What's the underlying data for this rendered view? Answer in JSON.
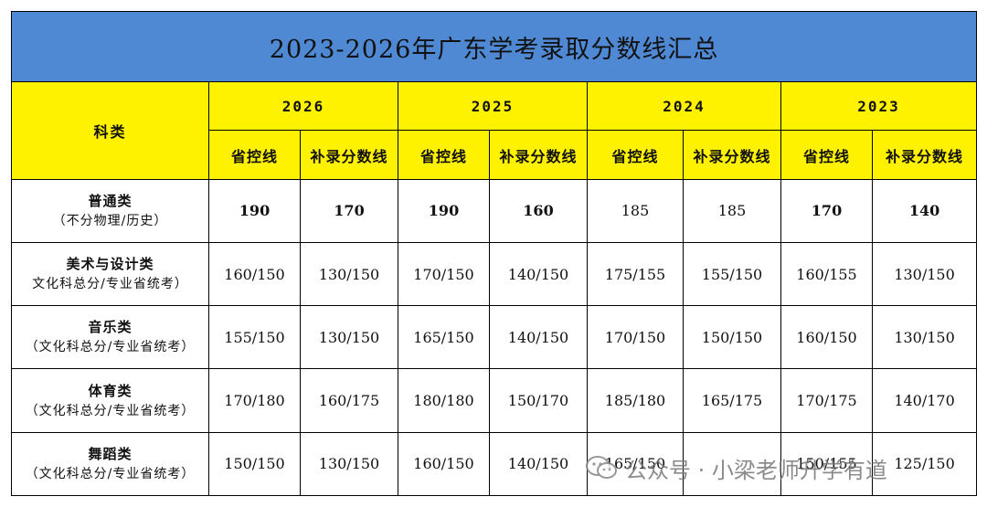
{
  "title": "2023-2026年广东学考录取分数线汇总",
  "corner_label": "科类",
  "years": [
    "2026",
    "2025",
    "2024",
    "2023"
  ],
  "sub_headers": [
    "省控线",
    "补录分数线"
  ],
  "rows": [
    {
      "name": "普通类",
      "note": "（不分物理/历史）",
      "values": [
        "190",
        "170",
        "190",
        "160",
        "185",
        "185",
        "170",
        "140"
      ]
    },
    {
      "name": "美术与设计类",
      "note": "文化科总分/专业省统考）",
      "values": [
        "160/150",
        "130/150",
        "170/150",
        "140/150",
        "175/155",
        "155/150",
        "160/155",
        "130/150"
      ]
    },
    {
      "name": "音乐类",
      "note": "（文化科总分/专业省统考）",
      "values": [
        "155/150",
        "130/150",
        "165/150",
        "140/150",
        "170/150",
        "150/150",
        "160/150",
        "130/150"
      ]
    },
    {
      "name": "体育类",
      "note": "（文化科总分/专业省统考）",
      "values": [
        "170/180",
        "160/175",
        "180/180",
        "150/170",
        "185/180",
        "165/175",
        "170/175",
        "140/170"
      ]
    },
    {
      "name": "舞蹈类",
      "note": "（文化科总分/专业省统考）",
      "values": [
        "150/150",
        "130/150",
        "160/150",
        "140/150",
        "165/150",
        "",
        "150/155",
        "125/150"
      ]
    }
  ],
  "watermark": "公众号 · 小梁老师升学有道",
  "colors": {
    "title_bg": "#4f89d4",
    "header_bg": "#fff200",
    "highlight": "#d0101a"
  }
}
